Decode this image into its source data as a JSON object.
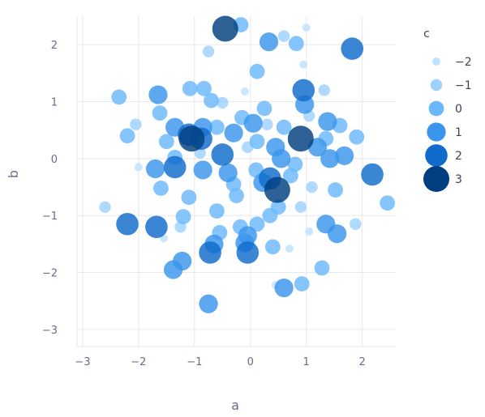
{
  "chart_data": {
    "type": "scatter",
    "xlabel": "a",
    "ylabel": "b",
    "xlim": [
      -3.1,
      2.6
    ],
    "ylim": [
      -3.3,
      2.5
    ],
    "xticks": [
      -3,
      -2,
      -1,
      0,
      1,
      2
    ],
    "yticks": [
      -3,
      -2,
      -1,
      0,
      1,
      2
    ],
    "grid": true,
    "size_color_legend": {
      "title": "c",
      "placement": "right",
      "levels": [
        {
          "value": -2,
          "label": "−2",
          "color": "#bfe2ff"
        },
        {
          "value": -1,
          "label": "−1",
          "color": "#9fd1ff"
        },
        {
          "value": 0,
          "label": "0",
          "color": "#6ab8fb"
        },
        {
          "value": 1,
          "label": "1",
          "color": "#3b95ec"
        },
        {
          "value": 2,
          "label": "2",
          "color": "#0f6bcc"
        },
        {
          "value": 3,
          "label": "3",
          "color": "#003f7f"
        }
      ]
    },
    "points": [
      {
        "a": -0.45,
        "b": 2.28,
        "c": 3
      },
      {
        "a": -0.17,
        "b": 2.35,
        "c": 0
      },
      {
        "a": 0.33,
        "b": 2.05,
        "c": 1
      },
      {
        "a": 0.82,
        "b": 2.02,
        "c": 0
      },
      {
        "a": 1.82,
        "b": 1.93,
        "c": 2
      },
      {
        "a": 1.0,
        "b": 2.3,
        "c": -2
      },
      {
        "a": 0.6,
        "b": 2.15,
        "c": -1
      },
      {
        "a": 0.12,
        "b": 1.53,
        "c": 0
      },
      {
        "a": -0.75,
        "b": 1.88,
        "c": -1
      },
      {
        "a": -2.35,
        "b": 1.08,
        "c": 0
      },
      {
        "a": -1.65,
        "b": 1.12,
        "c": 1
      },
      {
        "a": -1.08,
        "b": 1.23,
        "c": 0
      },
      {
        "a": -0.83,
        "b": 1.23,
        "c": 0
      },
      {
        "a": 0.95,
        "b": 1.2,
        "c": 2
      },
      {
        "a": 1.32,
        "b": 1.2,
        "c": -1
      },
      {
        "a": 0.97,
        "b": 0.95,
        "c": 1
      },
      {
        "a": -0.7,
        "b": 1.02,
        "c": 0
      },
      {
        "a": -0.5,
        "b": 0.98,
        "c": -1
      },
      {
        "a": 0.25,
        "b": 0.88,
        "c": 0
      },
      {
        "a": 1.38,
        "b": 0.65,
        "c": 1
      },
      {
        "a": 1.6,
        "b": 0.58,
        "c": 0
      },
      {
        "a": -1.62,
        "b": 0.8,
        "c": 0
      },
      {
        "a": -1.35,
        "b": 0.55,
        "c": 1
      },
      {
        "a": -0.85,
        "b": 0.55,
        "c": 1
      },
      {
        "a": -0.15,
        "b": 0.72,
        "c": 0
      },
      {
        "a": -2.2,
        "b": 0.4,
        "c": 0
      },
      {
        "a": -1.05,
        "b": 0.35,
        "c": 3
      },
      {
        "a": -1.1,
        "b": 0.42,
        "c": 2
      },
      {
        "a": -0.88,
        "b": 0.35,
        "c": 2
      },
      {
        "a": 0.12,
        "b": 0.3,
        "c": 0
      },
      {
        "a": 0.45,
        "b": 0.2,
        "c": 1
      },
      {
        "a": 0.9,
        "b": 0.35,
        "c": 3
      },
      {
        "a": 1.35,
        "b": 0.35,
        "c": 0
      },
      {
        "a": 1.9,
        "b": 0.38,
        "c": 0
      },
      {
        "a": -0.5,
        "b": 0.07,
        "c": 2
      },
      {
        "a": 1.42,
        "b": 0.0,
        "c": 1
      },
      {
        "a": 1.68,
        "b": 0.05,
        "c": 1
      },
      {
        "a": -1.35,
        "b": 0.02,
        "c": 0
      },
      {
        "a": -1.7,
        "b": -0.18,
        "c": 1
      },
      {
        "a": -1.35,
        "b": -0.15,
        "c": 2
      },
      {
        "a": -0.85,
        "b": -0.2,
        "c": 1
      },
      {
        "a": 0.35,
        "b": -0.35,
        "c": 2
      },
      {
        "a": 0.48,
        "b": -0.55,
        "c": 3
      },
      {
        "a": 0.22,
        "b": -0.42,
        "c": 1
      },
      {
        "a": -0.3,
        "b": -0.45,
        "c": 0
      },
      {
        "a": 0.8,
        "b": -0.1,
        "c": 0
      },
      {
        "a": 2.18,
        "b": -0.28,
        "c": 2
      },
      {
        "a": 1.52,
        "b": -0.55,
        "c": 0
      },
      {
        "a": 2.45,
        "b": -0.78,
        "c": 0
      },
      {
        "a": -1.6,
        "b": -0.52,
        "c": 0
      },
      {
        "a": -1.1,
        "b": -0.68,
        "c": 0
      },
      {
        "a": -0.6,
        "b": -0.92,
        "c": 0
      },
      {
        "a": 0.35,
        "b": -1.0,
        "c": 0
      },
      {
        "a": -2.6,
        "b": -0.85,
        "c": -1
      },
      {
        "a": -2.2,
        "b": -1.15,
        "c": 2
      },
      {
        "a": -1.68,
        "b": -1.2,
        "c": 2
      },
      {
        "a": -1.2,
        "b": -1.02,
        "c": 0
      },
      {
        "a": 1.35,
        "b": -1.15,
        "c": 1
      },
      {
        "a": 1.55,
        "b": -1.32,
        "c": 1
      },
      {
        "a": 1.88,
        "b": -1.15,
        "c": -1
      },
      {
        "a": -0.55,
        "b": -1.3,
        "c": 0
      },
      {
        "a": -0.18,
        "b": -1.2,
        "c": 0
      },
      {
        "a": 0.12,
        "b": -1.15,
        "c": 0
      },
      {
        "a": -0.05,
        "b": -1.35,
        "c": 1
      },
      {
        "a": -0.1,
        "b": -1.48,
        "c": 1
      },
      {
        "a": 0.4,
        "b": -1.55,
        "c": 0
      },
      {
        "a": -0.65,
        "b": -1.5,
        "c": 1
      },
      {
        "a": -0.72,
        "b": -1.65,
        "c": 2
      },
      {
        "a": -0.05,
        "b": -1.65,
        "c": 2
      },
      {
        "a": -1.22,
        "b": -1.8,
        "c": 1
      },
      {
        "a": -1.38,
        "b": -1.95,
        "c": 1
      },
      {
        "a": 1.28,
        "b": -1.92,
        "c": 0
      },
      {
        "a": 0.92,
        "b": -2.2,
        "c": 0
      },
      {
        "a": 0.6,
        "b": -2.27,
        "c": 1
      },
      {
        "a": -0.75,
        "b": -2.55,
        "c": 1
      },
      {
        "a": -0.3,
        "b": 0.45,
        "c": 1
      },
      {
        "a": 0.05,
        "b": 0.62,
        "c": 1
      },
      {
        "a": 0.6,
        "b": 0.55,
        "c": 0
      },
      {
        "a": 1.2,
        "b": 0.2,
        "c": 1
      },
      {
        "a": -0.4,
        "b": -0.25,
        "c": 1
      },
      {
        "a": 0.1,
        "b": -0.2,
        "c": 0
      },
      {
        "a": 0.72,
        "b": -0.3,
        "c": 0
      },
      {
        "a": 1.1,
        "b": -0.5,
        "c": -1
      },
      {
        "a": -0.9,
        "b": 0.1,
        "c": -1
      },
      {
        "a": -1.5,
        "b": 0.3,
        "c": 0
      },
      {
        "a": 0.5,
        "b": -0.85,
        "c": 0
      },
      {
        "a": 0.9,
        "b": -0.85,
        "c": -1
      },
      {
        "a": -0.25,
        "b": -0.65,
        "c": 0
      },
      {
        "a": 0.3,
        "b": 0.6,
        "c": -1
      },
      {
        "a": -0.6,
        "b": 0.55,
        "c": 0
      },
      {
        "a": 1.05,
        "b": 0.75,
        "c": -1
      },
      {
        "a": 0.55,
        "b": 0.0,
        "c": 1
      },
      {
        "a": -0.05,
        "b": 0.2,
        "c": -1
      },
      {
        "a": -1.25,
        "b": -1.2,
        "c": -1
      },
      {
        "a": -1.55,
        "b": -1.4,
        "c": -2
      },
      {
        "a": 1.05,
        "b": -1.28,
        "c": -2
      },
      {
        "a": 0.7,
        "b": -1.58,
        "c": -2
      },
      {
        "a": -2.0,
        "b": -0.15,
        "c": -2
      },
      {
        "a": -2.05,
        "b": 0.6,
        "c": -1
      },
      {
        "a": 0.95,
        "b": 1.65,
        "c": -2
      },
      {
        "a": -0.1,
        "b": 1.18,
        "c": -2
      },
      {
        "a": 0.45,
        "b": -2.22,
        "c": -2
      }
    ]
  }
}
